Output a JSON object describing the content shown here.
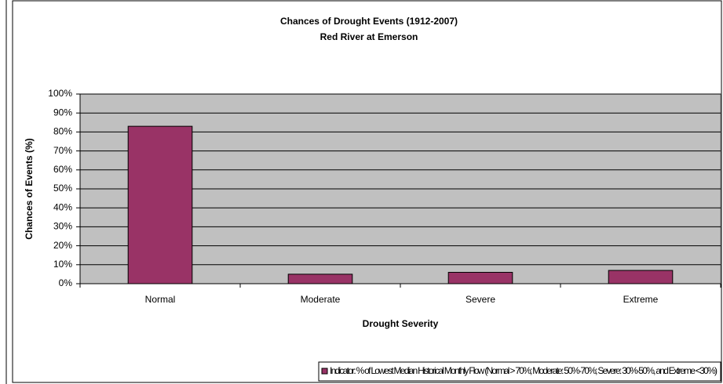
{
  "chart_data": {
    "type": "bar",
    "title": "Chances of Drought Events (1912-2007)",
    "subtitle": "Red River at Emerson",
    "x_label": "Drought Severity",
    "y_label": "Chances of Events (%)",
    "categories": [
      "Normal",
      "Moderate",
      "Severe",
      "Extreme"
    ],
    "series": [
      {
        "name": "Indicator: % of Lowest Median Historical Monthly Flow (Normal > 70%; Moderate: 50%-70%; Severe: 30%-50%, and Extreme <30%)",
        "color": "#993366",
        "values": [
          83,
          5,
          6,
          7
        ]
      }
    ],
    "ylim": [
      0,
      100
    ],
    "yticks": [
      {
        "value": 0,
        "label": "0%"
      },
      {
        "value": 10,
        "label": "10%"
      },
      {
        "value": 20,
        "label": "20%"
      },
      {
        "value": 30,
        "label": "30%"
      },
      {
        "value": 40,
        "label": "40%"
      },
      {
        "value": 50,
        "label": "50%"
      },
      {
        "value": 60,
        "label": "60%"
      },
      {
        "value": 70,
        "label": "70%"
      },
      {
        "value": 80,
        "label": "80%"
      },
      {
        "value": 90,
        "label": "90%"
      },
      {
        "value": 100,
        "label": "100%"
      }
    ],
    "grid": true,
    "plot_background": "#c0c0c0",
    "legend": "bottom"
  }
}
